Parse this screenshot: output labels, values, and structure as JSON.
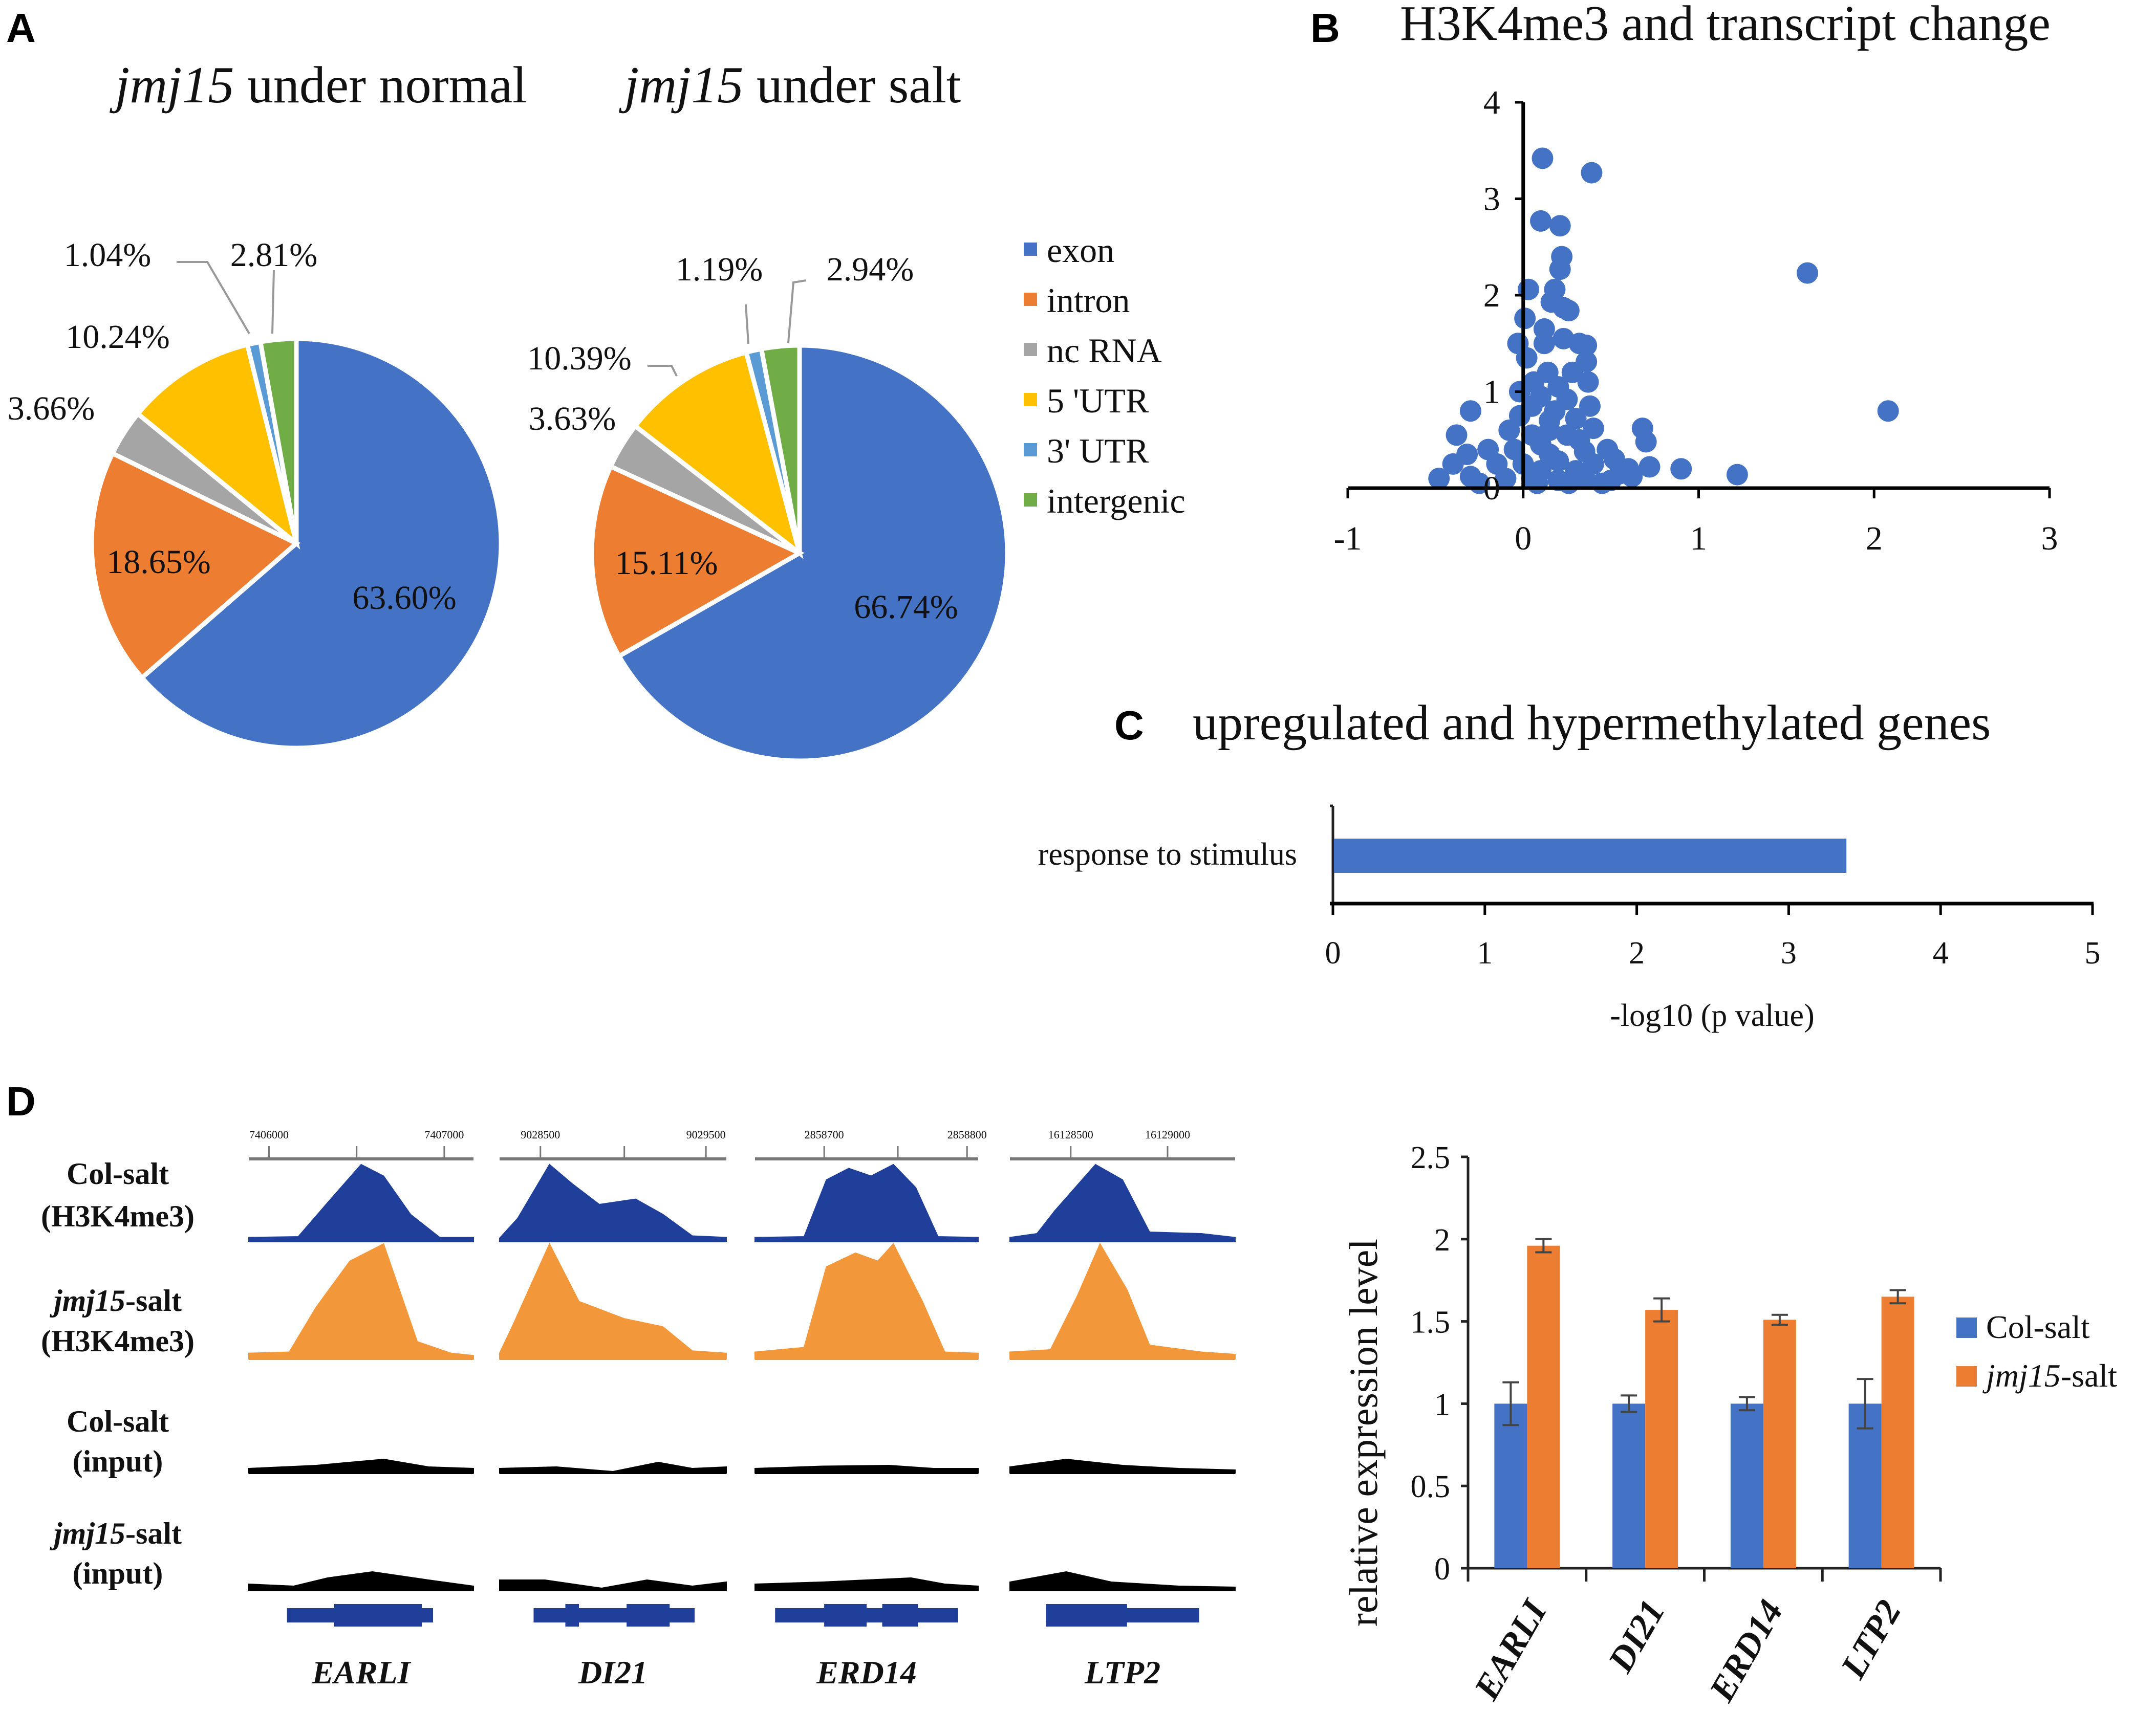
{
  "panels": {
    "A": {
      "label": "A"
    },
    "B": {
      "label": "B"
    },
    "C": {
      "label": "C"
    },
    "D": {
      "label": "D"
    }
  },
  "colors": {
    "exon": "#4472C4",
    "intron": "#ED7D31",
    "nc RNA": "#A5A5A5",
    "5 'UTR": "#FFC000",
    "3' UTR": "#5B9BD5",
    "intergenic": "#70AD47",
    "col_track": "#1F3F9A",
    "jmj_track": "#F2983A",
    "input_track": "#000000",
    "gene_model": "#1F3F9A"
  },
  "chart_data": [
    {
      "id": "pie-normal",
      "type": "pie",
      "title_italic": "jmj15",
      "title_rest": " under normal",
      "categories": [
        "exon",
        "intron",
        "nc RNA",
        "5 'UTR",
        "3' UTR",
        "intergenic"
      ],
      "values": [
        63.6,
        18.65,
        3.66,
        10.24,
        1.04,
        2.81
      ],
      "labels": [
        "63.60%",
        "18.65%",
        "3.66%",
        "10.24%",
        "1.04%",
        "2.81%"
      ]
    },
    {
      "id": "pie-salt",
      "type": "pie",
      "title_italic": "jmj15",
      "title_rest": " under salt",
      "categories": [
        "exon",
        "intron",
        "nc RNA",
        "5 'UTR",
        "3' UTR",
        "intergenic"
      ],
      "values": [
        66.74,
        15.11,
        3.63,
        10.39,
        1.19,
        2.94
      ],
      "labels": [
        "66.74%",
        "15.11%",
        "3.63%",
        "10.39%",
        "1.19%",
        "2.94%"
      ]
    },
    {
      "id": "scatter-h3k4me3",
      "type": "scatter",
      "title": "H3K4me3 and transcript change",
      "xlabel": "",
      "ylabel": "",
      "xlim": [
        -1,
        3
      ],
      "ylim": [
        0,
        4
      ],
      "xticks": [
        "-1",
        "0",
        "1",
        "2",
        "3"
      ],
      "yticks": [
        "0",
        "1",
        "2",
        "3",
        "4"
      ],
      "points": [
        [
          0.11,
          3.42
        ],
        [
          0.39,
          3.27
        ],
        [
          0.1,
          2.77
        ],
        [
          0.21,
          2.72
        ],
        [
          0.22,
          2.4
        ],
        [
          0.21,
          2.27
        ],
        [
          1.62,
          2.23
        ],
        [
          0.03,
          2.06
        ],
        [
          0.18,
          2.06
        ],
        [
          0.16,
          1.93
        ],
        [
          0.23,
          1.87
        ],
        [
          0.26,
          1.84
        ],
        [
          0.01,
          1.76
        ],
        [
          0.12,
          1.65
        ],
        [
          0.23,
          1.55
        ],
        [
          0.32,
          1.5
        ],
        [
          0.36,
          1.48
        ],
        [
          -0.03,
          1.5
        ],
        [
          0.02,
          1.35
        ],
        [
          0.36,
          1.31
        ],
        [
          0.14,
          1.2
        ],
        [
          0.37,
          1.1
        ],
        [
          0.2,
          1.05
        ],
        [
          -0.02,
          1.0
        ],
        [
          0.1,
          0.95
        ],
        [
          0.25,
          0.92
        ],
        [
          2.08,
          0.8
        ],
        [
          -0.3,
          0.8
        ],
        [
          0.05,
          0.85
        ],
        [
          0.18,
          0.8
        ],
        [
          -0.02,
          0.75
        ],
        [
          0.15,
          0.7
        ],
        [
          0.3,
          0.72
        ],
        [
          0.4,
          0.62
        ],
        [
          -0.38,
          0.55
        ],
        [
          0.68,
          0.62
        ],
        [
          0.7,
          0.48
        ],
        [
          0.05,
          0.55
        ],
        [
          0.25,
          0.55
        ],
        [
          0.1,
          0.45
        ],
        [
          -0.32,
          0.35
        ],
        [
          -0.2,
          0.4
        ],
        [
          0.48,
          0.4
        ],
        [
          0.52,
          0.3
        ],
        [
          0.35,
          0.38
        ],
        [
          -0.05,
          0.4
        ],
        [
          0.15,
          0.35
        ],
        [
          -0.4,
          0.25
        ],
        [
          -0.15,
          0.25
        ],
        [
          0.0,
          0.25
        ],
        [
          0.2,
          0.28
        ],
        [
          0.4,
          0.25
        ],
        [
          0.6,
          0.2
        ],
        [
          0.72,
          0.22
        ],
        [
          0.9,
          0.2
        ],
        [
          1.22,
          0.14
        ],
        [
          -0.48,
          0.1
        ],
        [
          -0.3,
          0.12
        ],
        [
          -0.1,
          0.1
        ],
        [
          0.05,
          0.1
        ],
        [
          0.2,
          0.08
        ],
        [
          0.35,
          0.1
        ],
        [
          0.5,
          0.08
        ],
        [
          0.62,
          0.12
        ],
        [
          0.3,
          0.18
        ],
        [
          0.1,
          0.18
        ],
        [
          -0.25,
          0.05
        ],
        [
          0.45,
          0.05
        ],
        [
          0.08,
          0.05
        ],
        [
          0.26,
          0.05
        ],
        [
          0.55,
          0.15
        ],
        [
          0.12,
          1.5
        ],
        [
          0.06,
          1.1
        ],
        [
          0.28,
          1.2
        ],
        [
          0.15,
          0.6
        ],
        [
          0.32,
          0.5
        ],
        [
          -0.08,
          0.6
        ],
        [
          0.38,
          0.85
        ]
      ]
    },
    {
      "id": "bar-go",
      "type": "bar",
      "orientation": "horizontal",
      "title": "upregulated and hypermethylated genes",
      "categories": [
        "response to stimulus"
      ],
      "values": [
        3.38
      ],
      "xlabel": "-log10 (p value)",
      "xlim": [
        0,
        5
      ],
      "xticks": [
        "0",
        "1",
        "2",
        "3",
        "4",
        "5"
      ]
    },
    {
      "id": "bar-expression",
      "type": "bar",
      "ylabel": "relative expression level",
      "ylim": [
        0,
        2.5
      ],
      "yticks": [
        "0",
        "0.5",
        "1",
        "1.5",
        "2",
        "2.5"
      ],
      "categories": [
        "EARLI",
        "DI21",
        "ERD14",
        "LTP2"
      ],
      "series": [
        {
          "name": "Col-salt",
          "values": [
            1.0,
            1.0,
            1.0,
            1.0
          ],
          "errors": [
            0.13,
            0.05,
            0.04,
            0.15
          ]
        },
        {
          "name": "jmj15-salt",
          "values": [
            1.96,
            1.57,
            1.51,
            1.65
          ],
          "errors": [
            0.04,
            0.07,
            0.03,
            0.04
          ]
        }
      ],
      "legend": "right"
    }
  ],
  "legend": [
    "exon",
    "intron",
    "nc RNA",
    "5 'UTR",
    "3' UTR",
    "intergenic"
  ],
  "browser": {
    "rows": [
      {
        "line1_italic": "",
        "line1": "Col-salt",
        "line2": "(H3K4me3)"
      },
      {
        "line1_italic": "jmj15",
        "line1": "-salt",
        "line2": "(H3K4me3)"
      },
      {
        "line1_italic": "",
        "line1": "Col-salt",
        "line2": "(input)"
      },
      {
        "line1_italic": "jmj15",
        "line1": "-salt",
        "line2": "(input)"
      }
    ],
    "loci": [
      {
        "gene": "EARLI",
        "ruler_left": "7406000",
        "ruler_right": "7407000"
      },
      {
        "gene": "DI21",
        "ruler_left": "9028500",
        "ruler_right": "9029500"
      },
      {
        "gene": "ERD14",
        "ruler_left": "2858700",
        "ruler_right": "2858800"
      },
      {
        "gene": "LTP2",
        "ruler_left": "16128500",
        "ruler_right": "16129000"
      }
    ]
  },
  "expr_legend": [
    {
      "italic": "",
      "text": "Col-salt"
    },
    {
      "italic": "jmj15",
      "text": "-salt"
    }
  ]
}
